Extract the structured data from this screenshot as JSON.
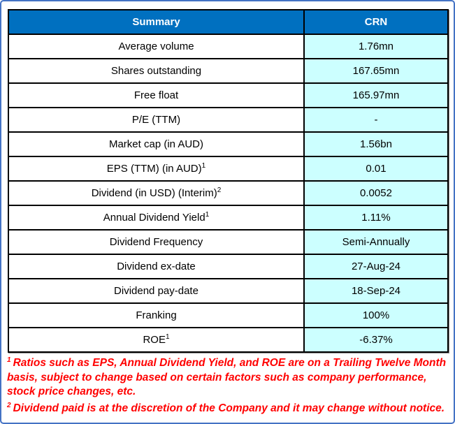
{
  "chart_data": {
    "type": "table",
    "title": "Summary statistics table",
    "columns": [
      "Summary",
      "CRN"
    ],
    "rows": [
      {
        "label": "Average volume",
        "sup": "",
        "value": "1.76mn"
      },
      {
        "label": "Shares outstanding",
        "sup": "",
        "value": "167.65mn"
      },
      {
        "label": "Free float",
        "sup": "",
        "value": "165.97mn"
      },
      {
        "label": "P/E (TTM)",
        "sup": "",
        "value": "-"
      },
      {
        "label": "Market cap (in AUD)",
        "sup": "",
        "value": "1.56bn"
      },
      {
        "label": "EPS (TTM) (in AUD)",
        "sup": "1",
        "value": "0.01"
      },
      {
        "label": "Dividend (in USD) (Interim)",
        "sup": "2",
        "value": "0.0052"
      },
      {
        "label": "Annual Dividend Yield",
        "sup": "1",
        "value": "1.11%"
      },
      {
        "label": "Dividend Frequency",
        "sup": "",
        "value": "Semi-Annually"
      },
      {
        "label": "Dividend ex-date",
        "sup": "",
        "value": "27-Aug-24"
      },
      {
        "label": "Dividend pay-date",
        "sup": "",
        "value": "18-Sep-24"
      },
      {
        "label": "Franking",
        "sup": "",
        "value": "100%"
      },
      {
        "label": "ROE",
        "sup": "1",
        "value": "-6.37%"
      }
    ],
    "footnotes": [
      {
        "marker": "1",
        "text": "Ratios such as EPS, Annual Dividend Yield, and ROE are on a Trailing Twelve Month basis, subject to change based on certain factors such as company performance, stock price changes, etc."
      },
      {
        "marker": "2",
        "text": "Dividend paid is at the discretion of the Company and it may change without notice."
      }
    ]
  },
  "colors": {
    "header_bg": "#0070C0",
    "header_text": "#FFFFFF",
    "value_cell_bg": "#CCFFFF",
    "label_cell_bg": "#FFFFFF",
    "grid_border": "#000000",
    "frame_border": "#4472C4",
    "footnote_text": "#FF0000"
  }
}
